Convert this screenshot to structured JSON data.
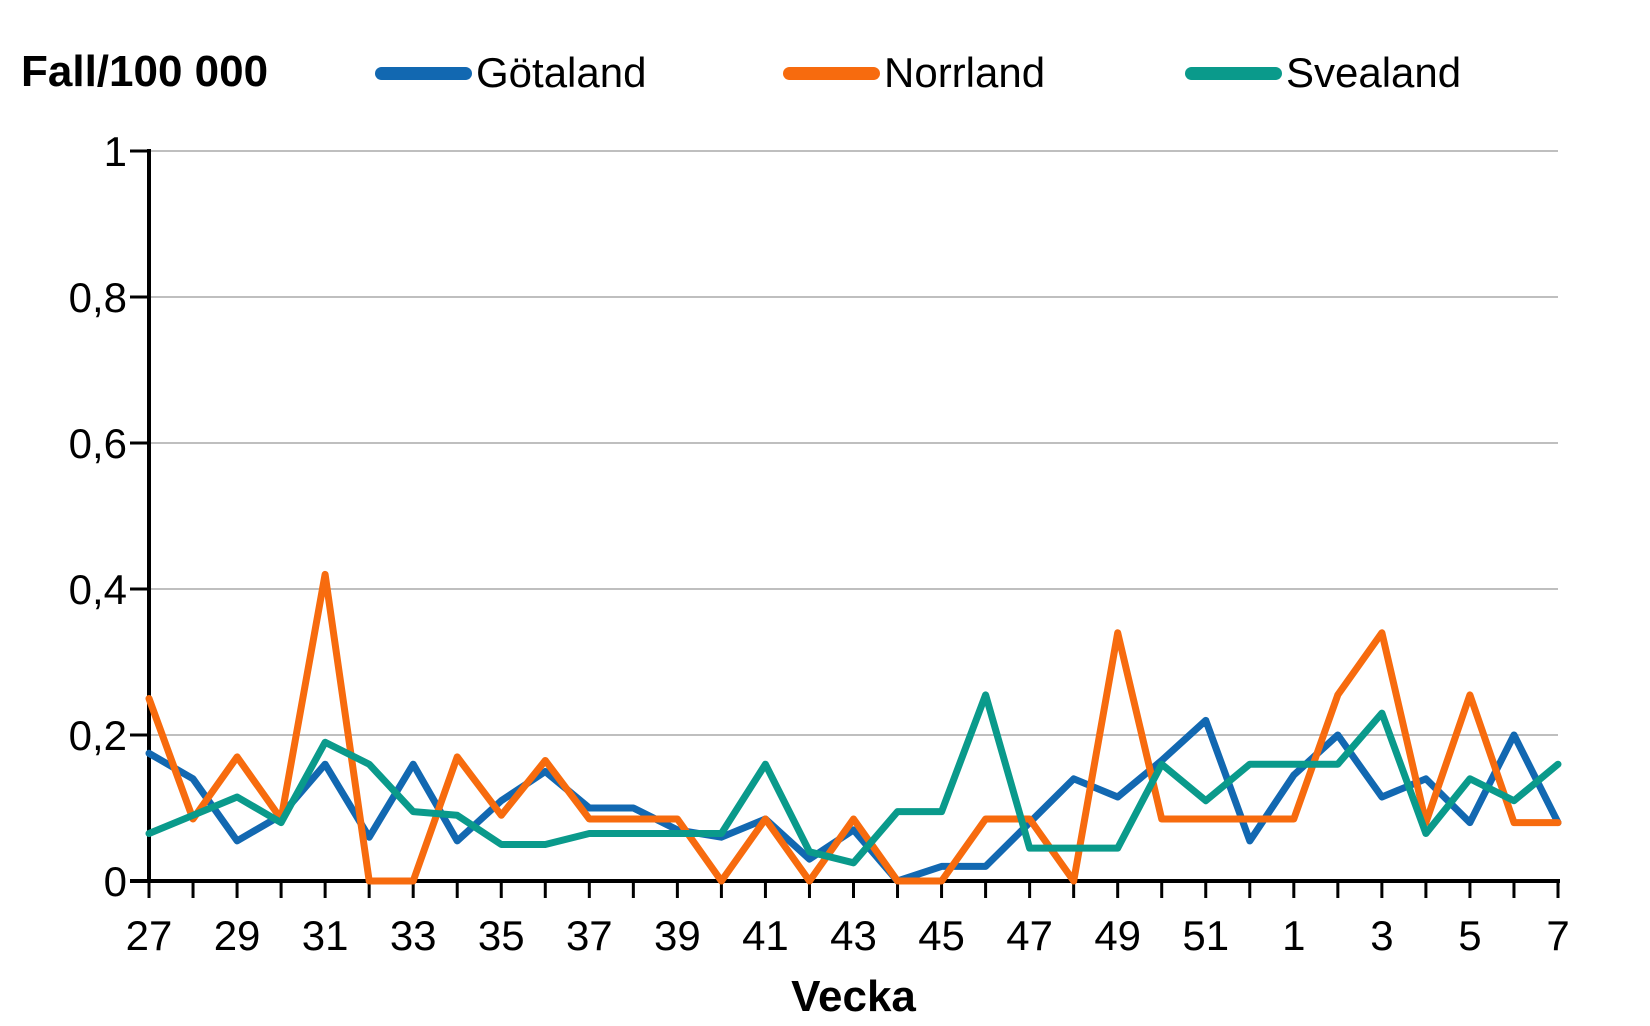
{
  "header": {
    "y_axis_title": "Fall/100 000",
    "legend": [
      {
        "name": "Götaland",
        "color": "#1268B1"
      },
      {
        "name": "Norrland",
        "color": "#F76B0E"
      },
      {
        "name": "Svealand",
        "color": "#0A9A8B"
      }
    ]
  },
  "chart_data": {
    "type": "line",
    "title": "Fall/100 000",
    "xlabel": "Vecka",
    "ylabel": "Fall/100 000",
    "ylim": [
      0,
      1
    ],
    "grid": "horizontal",
    "legend_position": "top",
    "y_ticks": {
      "values": [
        0,
        0.2,
        0.4,
        0.6,
        0.8,
        1
      ],
      "labels": [
        "0",
        "0,2",
        "0,4",
        "0,6",
        "0,8",
        "1"
      ]
    },
    "x_tick_label_every": 2,
    "categories": [
      "27",
      "28",
      "29",
      "30",
      "31",
      "32",
      "33",
      "34",
      "35",
      "36",
      "37",
      "38",
      "39",
      "40",
      "41",
      "42",
      "43",
      "44",
      "45",
      "46",
      "47",
      "48",
      "49",
      "50",
      "51",
      "52",
      "1",
      "2",
      "3",
      "4",
      "5",
      "6",
      "7"
    ],
    "series": [
      {
        "name": "Götaland",
        "color": "#1268B1",
        "values": [
          0.175,
          0.14,
          0.055,
          0.09,
          0.16,
          0.06,
          0.16,
          0.055,
          0.11,
          0.15,
          0.1,
          0.1,
          0.07,
          0.06,
          0.085,
          0.03,
          0.07,
          0.0,
          0.02,
          0.02,
          0.08,
          0.14,
          0.115,
          0.165,
          0.22,
          0.055,
          0.145,
          0.2,
          0.115,
          0.14,
          0.08,
          0.2,
          0.08
        ]
      },
      {
        "name": "Norrland",
        "color": "#F76B0E",
        "values": [
          0.25,
          0.085,
          0.17,
          0.085,
          0.42,
          0.0,
          0.0,
          0.17,
          0.09,
          0.165,
          0.085,
          0.085,
          0.085,
          0.0,
          0.085,
          0.0,
          0.085,
          0.0,
          0.0,
          0.085,
          0.085,
          0.0,
          0.34,
          0.085,
          0.085,
          0.085,
          0.085,
          0.255,
          0.34,
          0.08,
          0.255,
          0.08,
          0.08
        ]
      },
      {
        "name": "Svealand",
        "color": "#0A9A8B",
        "values": [
          0.065,
          0.09,
          0.115,
          0.08,
          0.19,
          0.16,
          0.095,
          0.09,
          0.05,
          0.05,
          0.065,
          0.065,
          0.065,
          0.065,
          0.16,
          0.04,
          0.025,
          0.095,
          0.095,
          0.255,
          0.045,
          0.045,
          0.045,
          0.16,
          0.11,
          0.16,
          0.16,
          0.16,
          0.23,
          0.065,
          0.14,
          0.11,
          0.16
        ]
      }
    ],
    "colors": {
      "gridline": "#BFBFBF",
      "axis": "#000000",
      "text": "#000000"
    }
  }
}
